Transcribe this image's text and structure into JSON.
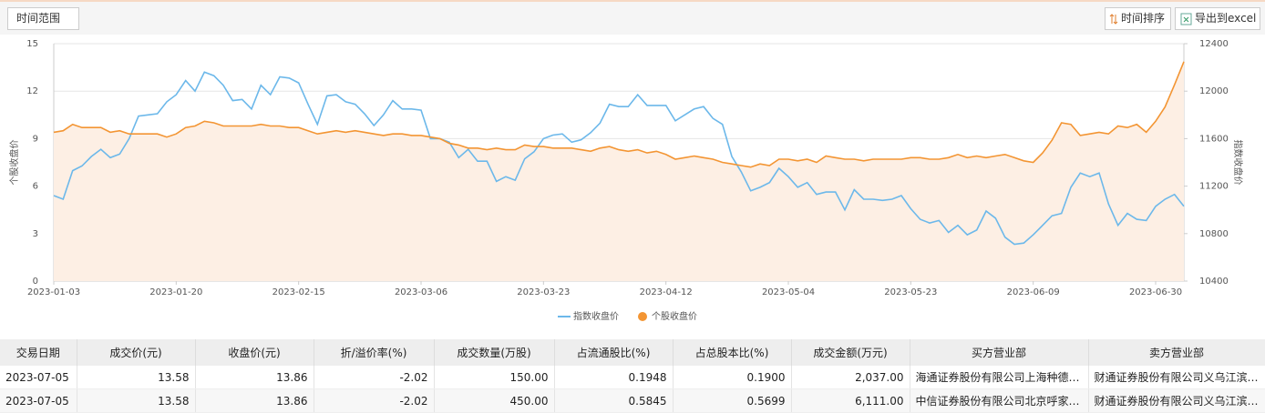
{
  "toolbar": {
    "time_range": "时间范围",
    "sort": "时间排序",
    "export": "导出到excel"
  },
  "chart_data": {
    "type": "line",
    "categories": [
      "2023-01-03",
      null,
      null,
      null,
      null,
      null,
      null,
      null,
      null,
      null,
      null,
      null,
      null,
      "2023-01-20",
      null,
      null,
      null,
      null,
      null,
      null,
      null,
      null,
      null,
      null,
      null,
      null,
      "2023-02-15",
      null,
      null,
      null,
      null,
      null,
      null,
      null,
      null,
      null,
      null,
      null,
      null,
      "2023-03-06",
      null,
      null,
      null,
      null,
      null,
      null,
      null,
      null,
      null,
      null,
      null,
      null,
      "2023-03-23",
      null,
      null,
      null,
      null,
      null,
      null,
      null,
      null,
      null,
      null,
      null,
      null,
      "2023-04-12",
      null,
      null,
      null,
      null,
      null,
      null,
      null,
      null,
      null,
      null,
      null,
      null,
      "2023-05-04",
      null,
      null,
      null,
      null,
      null,
      null,
      null,
      null,
      null,
      null,
      null,
      null,
      "2023-05-23",
      null,
      null,
      null,
      null,
      null,
      null,
      null,
      null,
      null,
      null,
      null,
      null,
      "2023-06-09",
      null,
      null,
      null,
      null,
      null,
      null,
      null,
      null,
      null,
      null,
      null,
      null,
      "2023-06-30",
      null,
      null,
      null
    ],
    "series": [
      {
        "name": "指数收盘价",
        "color": "#6cb8ea",
        "axis": "y2",
        "values": [
          11120,
          11090,
          11330,
          11370,
          11450,
          11510,
          11440,
          11470,
          11600,
          11790,
          11800,
          11810,
          11910,
          11970,
          12090,
          12000,
          12160,
          12130,
          12050,
          11920,
          11930,
          11850,
          12050,
          11970,
          12120,
          12110,
          12070,
          11890,
          11720,
          11960,
          11970,
          11910,
          11890,
          11810,
          11710,
          11800,
          11920,
          11850,
          11850,
          11840,
          11600,
          11600,
          11570,
          11440,
          11510,
          11410,
          11410,
          11240,
          11280,
          11250,
          11430,
          11490,
          11600,
          11630,
          11640,
          11570,
          11590,
          11650,
          11730,
          11890,
          11870,
          11870,
          11970,
          11880,
          11880,
          11880,
          11750,
          11800,
          11850,
          11870,
          11770,
          11720,
          11450,
          11320,
          11160,
          11190,
          11230,
          11350,
          11280,
          11190,
          11230,
          11130,
          11150,
          11150,
          11000,
          11170,
          11090,
          11090,
          11080,
          11090,
          11120,
          11010,
          10920,
          10890,
          10910,
          10810,
          10870,
          10790,
          10830,
          10990,
          10930,
          10770,
          10710,
          10720,
          10790,
          10870,
          10950,
          10970,
          11190,
          11310,
          11280,
          11310,
          11050,
          10870,
          10970,
          10920,
          10910,
          11030,
          11090,
          11130,
          11030
        ]
      },
      {
        "name": "个股收盘价",
        "color": "#f39533",
        "fill": "#fdefe4",
        "values": [
          9.4,
          9.5,
          9.9,
          9.7,
          9.7,
          9.7,
          9.4,
          9.5,
          9.3,
          9.3,
          9.3,
          9.3,
          9.1,
          9.3,
          9.7,
          9.8,
          10.1,
          10.0,
          9.8,
          9.8,
          9.8,
          9.8,
          9.9,
          9.8,
          9.8,
          9.7,
          9.7,
          9.5,
          9.3,
          9.4,
          9.5,
          9.4,
          9.5,
          9.4,
          9.3,
          9.2,
          9.3,
          9.3,
          9.2,
          9.2,
          9.1,
          9.0,
          8.7,
          8.6,
          8.4,
          8.4,
          8.3,
          8.4,
          8.3,
          8.3,
          8.6,
          8.5,
          8.5,
          8.4,
          8.4,
          8.4,
          8.3,
          8.2,
          8.4,
          8.5,
          8.3,
          8.2,
          8.3,
          8.1,
          8.2,
          8.0,
          7.7,
          7.8,
          7.9,
          7.8,
          7.7,
          7.5,
          7.4,
          7.3,
          7.2,
          7.4,
          7.3,
          7.7,
          7.7,
          7.6,
          7.7,
          7.5,
          7.9,
          7.8,
          7.7,
          7.7,
          7.6,
          7.7,
          7.7,
          7.7,
          7.7,
          7.8,
          7.8,
          7.7,
          7.7,
          7.8,
          8.0,
          7.8,
          7.9,
          7.8,
          7.9,
          8.0,
          7.8,
          7.6,
          7.5,
          8.1,
          8.9,
          10.0,
          9.9,
          9.2,
          9.3,
          9.4,
          9.3,
          9.8,
          9.7,
          9.9,
          9.4,
          10.1,
          11.0,
          12.4,
          13.86
        ]
      }
    ],
    "ylim": [
      0,
      15
    ],
    "yticks": [
      0,
      3,
      6,
      9,
      12,
      15
    ],
    "y2lim": [
      10400,
      12400
    ],
    "y2ticks": [
      10400,
      10800,
      11200,
      11600,
      12000,
      12400
    ],
    "ylabel": "个股收盘价",
    "y2label": "指数收盘价",
    "grid": true,
    "legend": "bottom"
  },
  "table": {
    "headers": [
      "交易日期",
      "成交价(元)",
      "收盘价(元)",
      "折/溢价率(%)",
      "成交数量(万股)",
      "占流通股比(%)",
      "占总股本比(%)",
      "成交金额(万元)",
      "买方营业部",
      "卖方营业部"
    ],
    "rows": [
      [
        "2023-07-05",
        "13.58",
        "13.86",
        "-2.02",
        "150.00",
        "0.1948",
        "0.1900",
        "2,037.00",
        "海通证券股份有限公司上海种德…",
        "财通证券股份有限公司义乌江滨…"
      ],
      [
        "2023-07-05",
        "13.58",
        "13.86",
        "-2.02",
        "450.00",
        "0.5845",
        "0.5699",
        "6,111.00",
        "中信证券股份有限公司北京呼家…",
        "财通证券股份有限公司义乌江滨…"
      ]
    ]
  }
}
